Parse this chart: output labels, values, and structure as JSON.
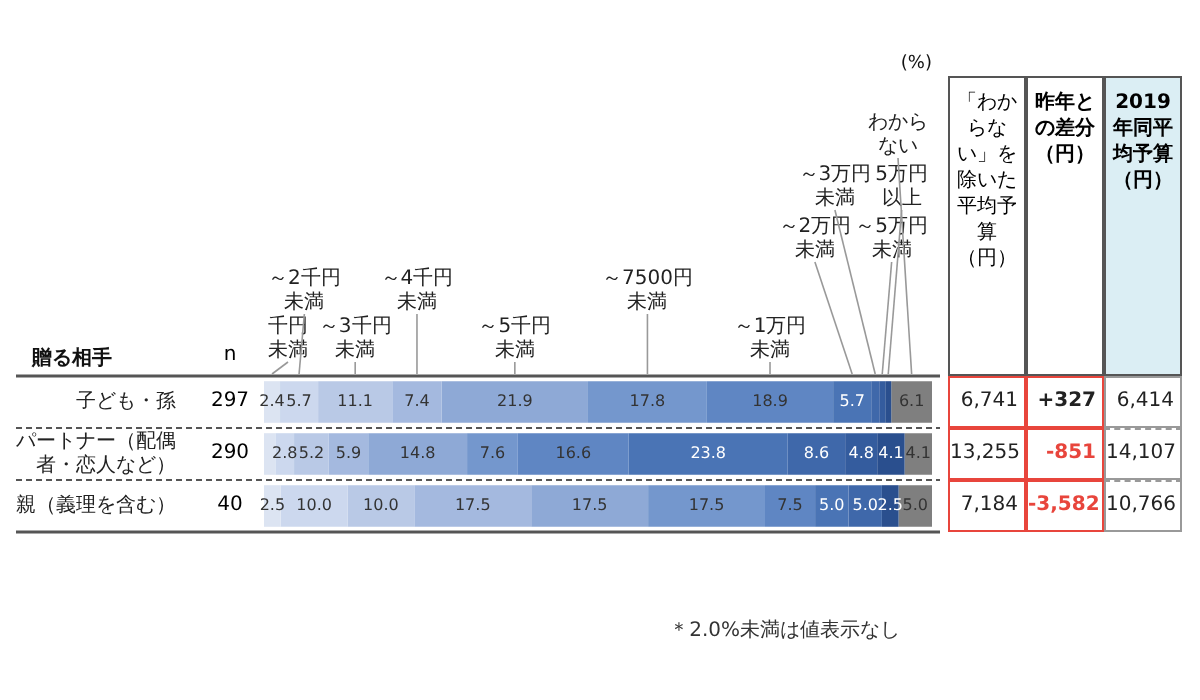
{
  "chart_data": [
    {
      "type": "bar",
      "orientation": "horizontal",
      "stacked": true,
      "legend": "top",
      "tick_labels": "y",
      "ylabel": "贈る相手",
      "xlabel": "(%)",
      "xlim": [
        0,
        100
      ],
      "categories": [
        "子ども・孫",
        "パートナー（配偶者・恋人など）",
        "親（義理を含む）"
      ],
      "series": [
        {
          "name": "千円未満",
          "color": "#dce4f2",
          "values": [
            2.4,
            1.7,
            2.5
          ],
          "value_labels": [
            "2.4",
            null,
            "2.5"
          ]
        },
        {
          "name": "～2千円未満",
          "color": "#ccd8ee",
          "values": [
            5.7,
            2.8,
            10.0
          ],
          "value_labels": [
            "5.7",
            "2.8",
            "10.0"
          ]
        },
        {
          "name": "～3千円未満",
          "color": "#b9c9e6",
          "values": [
            11.1,
            5.2,
            10.0
          ],
          "value_labels": [
            "11.1",
            "5.2",
            "10.0"
          ]
        },
        {
          "name": "～4千円未満",
          "color": "#a4b9df",
          "values": [
            7.4,
            5.9,
            17.5
          ],
          "value_labels": [
            "7.4",
            "5.9",
            "17.5"
          ]
        },
        {
          "name": "～5千円未満",
          "color": "#8ea9d6",
          "values": [
            21.9,
            14.8,
            17.5
          ],
          "value_labels": [
            "21.9",
            "14.8",
            "17.5"
          ]
        },
        {
          "name": "～7500円未満",
          "color": "#7497cd",
          "values": [
            17.8,
            7.6,
            17.5
          ],
          "value_labels": [
            "17.8",
            "7.6",
            "17.5"
          ]
        },
        {
          "name": "～1万円未満",
          "color": "#5f86c3",
          "values": [
            18.9,
            16.6,
            7.5
          ],
          "value_labels": [
            "18.9",
            "16.6",
            "7.5"
          ]
        },
        {
          "name": "～2万円未満",
          "color": "#4a74b5",
          "values": [
            5.7,
            23.8,
            5.0
          ],
          "value_labels": [
            "5.7",
            "23.8",
            "5.0"
          ]
        },
        {
          "name": "～3万円未満",
          "color": "#3f68aa",
          "values": [
            1.2,
            8.6,
            5.0
          ],
          "value_labels": [
            null,
            "8.6",
            "5.0"
          ]
        },
        {
          "name": "～5万円未満",
          "color": "#345c9e",
          "values": [
            0.9,
            4.8,
            0
          ],
          "value_labels": [
            null,
            "4.8",
            null
          ]
        },
        {
          "name": "5万円以上",
          "color": "#2a4f8e",
          "values": [
            0.9,
            4.1,
            2.5
          ],
          "value_labels": [
            null,
            "4.1",
            "2.5"
          ]
        },
        {
          "name": "わからない",
          "color": "#7f7f7f",
          "values": [
            6.1,
            4.1,
            5.0
          ],
          "value_labels": [
            "6.1",
            "4.1",
            "5.0"
          ]
        }
      ],
      "annotations": [
        "＊2.0%未満は値表示なし"
      ]
    },
    {
      "type": "other",
      "categories": [
        "n",
        "「わからない」を除いた平均予算（円）",
        "昨年との差分（円）",
        "2019年同平均予算（円）"
      ],
      "cell_labels": [
        [
          "297",
          "6,741",
          "+327",
          "6,414"
        ],
        [
          "290",
          "13,255",
          "-851",
          "14,107"
        ],
        [
          "40",
          "7,184",
          "-3,582",
          "10,766"
        ]
      ]
    }
  ]
}
